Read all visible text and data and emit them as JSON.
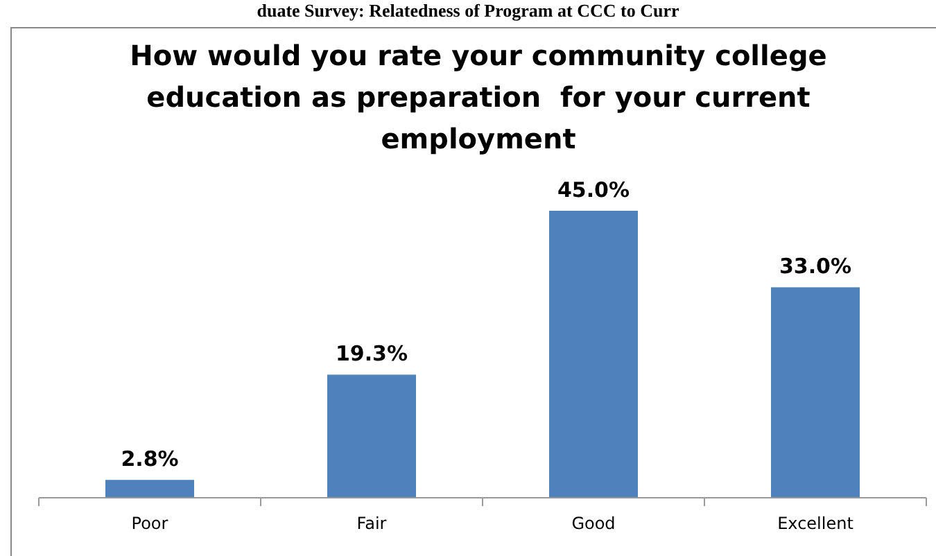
{
  "chart_data": {
    "type": "bar",
    "title": "How would you rate your community college education as preparation  for your current employment",
    "annotations": [
      "duate Survey: Relatedness of Program at CCC to Curr"
    ],
    "categories": [
      "Poor",
      "Fair",
      "Good",
      "Excellent"
    ],
    "values": [
      2.8,
      19.3,
      45.0,
      33.0
    ],
    "value_labels": [
      "2.8%",
      "19.3%",
      "45.0%",
      "33.0%"
    ],
    "color": "#4f81bd"
  }
}
